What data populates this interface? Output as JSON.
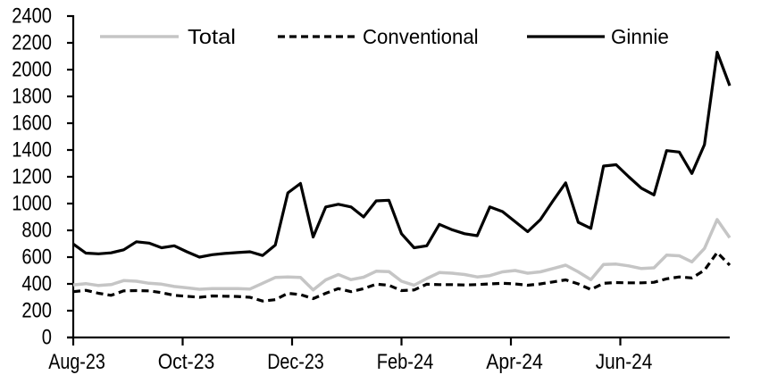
{
  "chart_data": {
    "type": "line",
    "title": "",
    "xlabel": "",
    "ylabel": "",
    "grid": false,
    "legend_position": "top",
    "background": "#ffffff",
    "axis_color": "#000000",
    "x_axis": {
      "tick_labels": [
        "Aug-23",
        "Oct-23",
        "Dec-23",
        "Feb-24",
        "Apr-24",
        "Jun-24"
      ],
      "tick_month_offsets": [
        0,
        2,
        4,
        6,
        8,
        10
      ],
      "months_span": 12,
      "frequency": "weekly"
    },
    "y_axis": {
      "min": 0,
      "max": 2400,
      "step": 200,
      "tick_labels": [
        "0",
        "200",
        "400",
        "600",
        "800",
        "1000",
        "1200",
        "1400",
        "1600",
        "1800",
        "2000",
        "2200",
        "2400"
      ]
    },
    "series": [
      {
        "name": "Total",
        "color": "#c5c5c5",
        "line_style": "solid",
        "values": [
          393,
          402,
          388,
          395,
          425,
          420,
          405,
          398,
          381,
          371,
          360,
          365,
          365,
          365,
          362,
          405,
          448,
          452,
          448,
          355,
          430,
          470,
          432,
          450,
          495,
          492,
          420,
          390,
          440,
          485,
          480,
          470,
          452,
          462,
          490,
          500,
          480,
          490,
          515,
          540,
          490,
          432,
          545,
          548,
          535,
          515,
          520,
          615,
          610,
          565,
          665,
          880,
          745
        ]
      },
      {
        "name": "Conventional",
        "color": "#000000",
        "line_style": "dashed",
        "values": [
          342,
          352,
          330,
          315,
          348,
          350,
          348,
          335,
          315,
          307,
          300,
          310,
          308,
          306,
          300,
          272,
          282,
          330,
          320,
          290,
          330,
          365,
          342,
          365,
          398,
          390,
          350,
          355,
          398,
          395,
          395,
          392,
          395,
          400,
          405,
          400,
          390,
          400,
          415,
          430,
          400,
          358,
          405,
          410,
          408,
          408,
          412,
          438,
          452,
          445,
          502,
          635,
          540
        ]
      },
      {
        "name": "Ginnie",
        "color": "#000000",
        "line_style": "solid",
        "values": [
          698,
          630,
          625,
          632,
          655,
          715,
          705,
          670,
          685,
          640,
          600,
          618,
          627,
          634,
          640,
          612,
          690,
          1080,
          1150,
          750,
          975,
          995,
          975,
          900,
          1020,
          1025,
          775,
          670,
          685,
          845,
          805,
          775,
          760,
          975,
          940,
          865,
          790,
          880,
          1020,
          1155,
          860,
          815,
          1280,
          1290,
          1200,
          1115,
          1065,
          1395,
          1385,
          1225,
          1440,
          2130,
          1880
        ]
      }
    ],
    "legend": [
      {
        "label": "Total"
      },
      {
        "label": "Conventional"
      },
      {
        "label": "Ginnie"
      }
    ]
  }
}
